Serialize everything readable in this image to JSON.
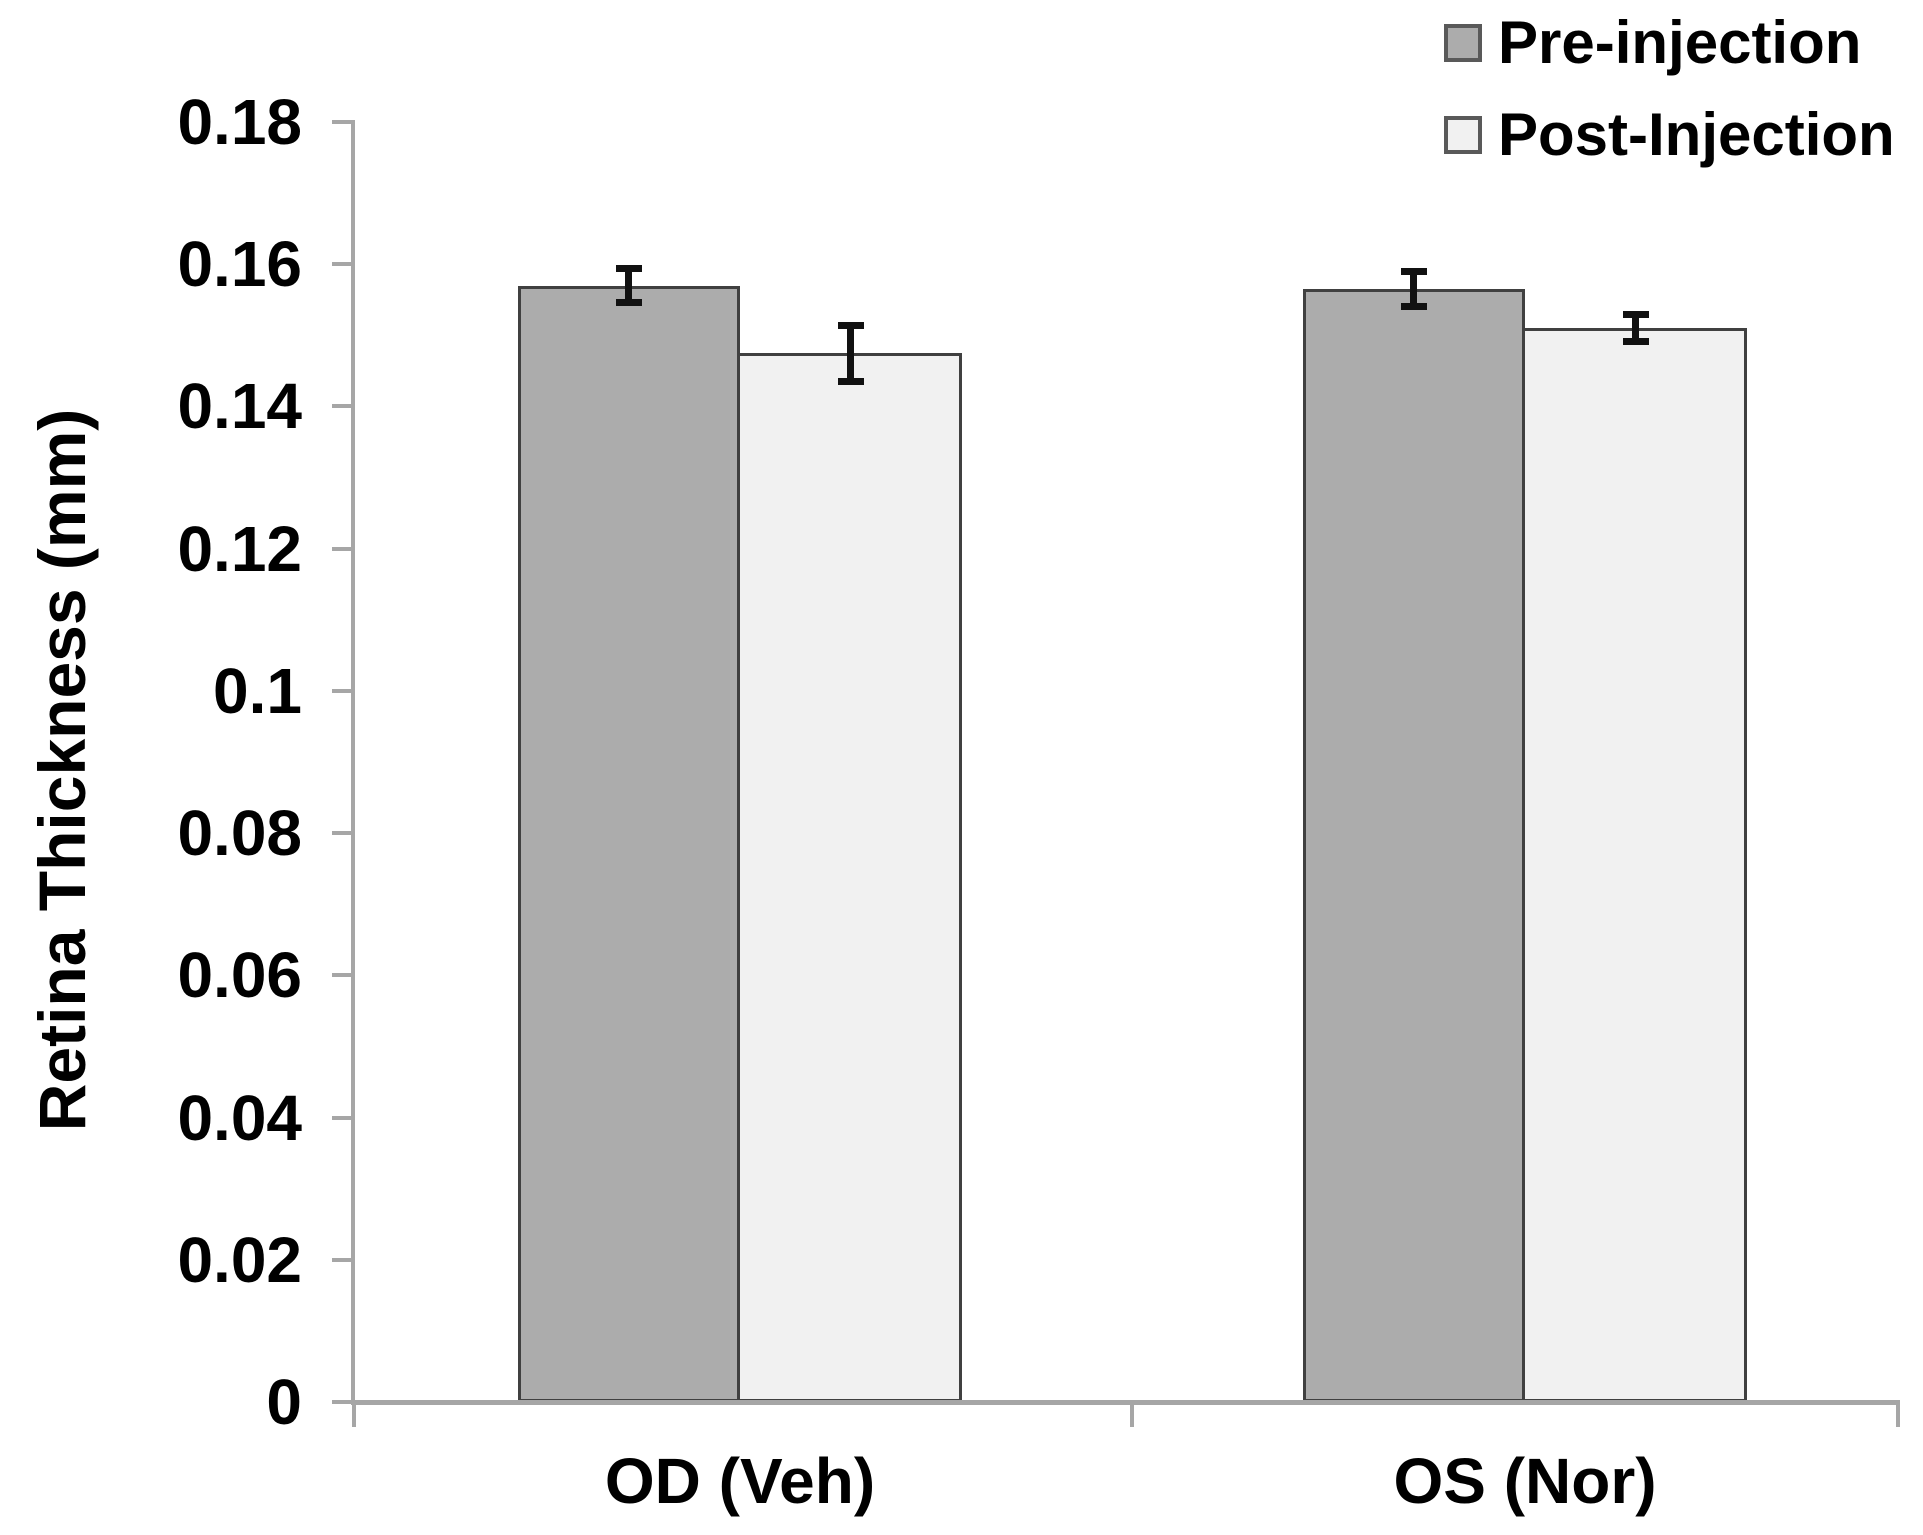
{
  "chart_data": {
    "type": "bar",
    "title": "",
    "xlabel": "",
    "ylabel": "Retina Thickness (mm)",
    "categories": [
      "OD (Veh)",
      "OS (Nor)"
    ],
    "series": [
      {
        "name": "Pre-injection",
        "values": [
          0.157,
          0.1565
        ],
        "errors": [
          0.0025,
          0.0025
        ],
        "fill": "#ACACAC"
      },
      {
        "name": "Post-Injection",
        "values": [
          0.1475,
          0.151
        ],
        "errors": [
          0.004,
          0.002
        ],
        "fill": "#F1F1F1"
      }
    ],
    "ylim": [
      0,
      0.18
    ],
    "ytick_step": 0.02,
    "ytick_labels": [
      "0",
      "0.02",
      "0.04",
      "0.06",
      "0.08",
      "0.1",
      "0.12",
      "0.14",
      "0.16",
      "0.18"
    ],
    "grid": false,
    "legend_position": "top-right",
    "colors": {
      "bar_border": "#404040",
      "axis": "#A6A6A6",
      "error_bar": "#111111",
      "text": "#000000"
    }
  }
}
